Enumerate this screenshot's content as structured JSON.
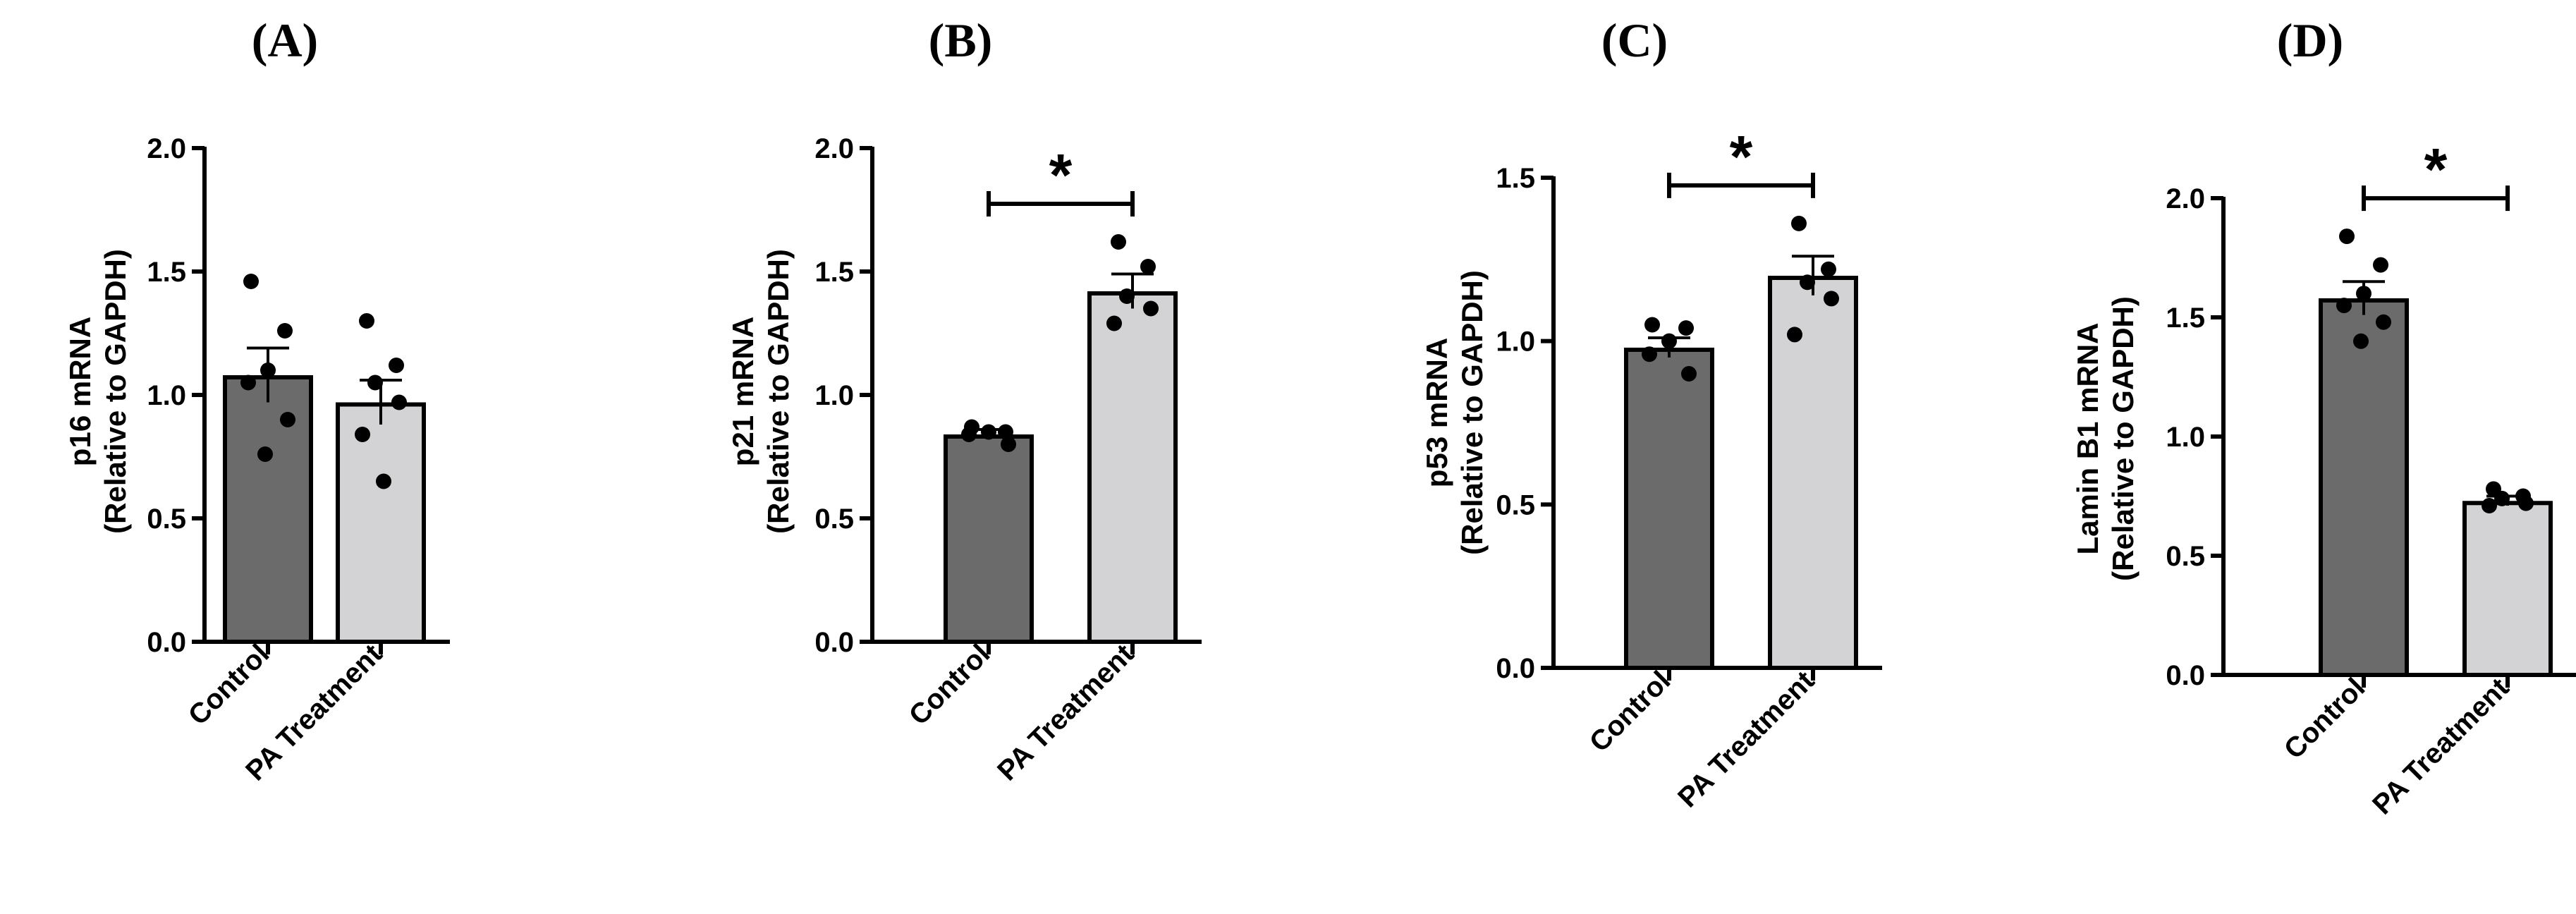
{
  "figure": {
    "background": "#ffffff",
    "axis_color": "#000000"
  },
  "chart_data": [
    {
      "panel": "(A)",
      "type": "bar",
      "ylabel_line1": "p16 mRNA",
      "ylabel_line2": "(Relative to GAPDH)",
      "categories": [
        "Control",
        "PA Treatment"
      ],
      "values": [
        1.08,
        0.97
      ],
      "sem": [
        0.11,
        0.09
      ],
      "points": [
        [
          1.46,
          1.26,
          1.1,
          1.05,
          0.9,
          0.76
        ],
        [
          1.3,
          1.12,
          1.05,
          0.97,
          0.84,
          0.65
        ]
      ],
      "colors": [
        "#6b6b6b",
        "#d3d3d6"
      ],
      "ylim": [
        0,
        2.0
      ],
      "yticks": [
        "0.0",
        "0.5",
        "1.0",
        "1.5",
        "2.0"
      ],
      "significance": ""
    },
    {
      "panel": "(B)",
      "type": "bar",
      "ylabel_line1": "p21 mRNA",
      "ylabel_line2": "(Relative to GAPDH)",
      "categories": [
        "Control",
        "PA Treatment"
      ],
      "values": [
        0.84,
        1.42
      ],
      "sem": [
        0.02,
        0.07
      ],
      "points": [
        [
          0.87,
          0.85,
          0.85,
          0.84,
          0.8
        ],
        [
          1.62,
          1.52,
          1.4,
          1.35,
          1.29
        ]
      ],
      "colors": [
        "#6b6b6b",
        "#d3d3d6"
      ],
      "ylim": [
        0,
        2.0
      ],
      "yticks": [
        "0.0",
        "0.5",
        "1.0",
        "1.5",
        "2.0"
      ],
      "significance": "*"
    },
    {
      "panel": "(C)",
      "type": "bar",
      "ylabel_line1": "p53 mRNA",
      "ylabel_line2": "(Relative to GAPDH)",
      "categories": [
        "Control",
        "PA Treatment"
      ],
      "values": [
        0.98,
        1.2
      ],
      "sem": [
        0.03,
        0.06
      ],
      "points": [
        [
          1.05,
          1.04,
          1.0,
          0.96,
          0.9
        ],
        [
          1.36,
          1.22,
          1.18,
          1.13,
          1.02
        ]
      ],
      "colors": [
        "#6b6b6b",
        "#d3d3d6"
      ],
      "ylim": [
        0,
        1.5
      ],
      "yticks": [
        "0.0",
        "0.5",
        "1.0",
        "1.5"
      ],
      "significance": "*"
    },
    {
      "panel": "(D)",
      "type": "bar",
      "ylabel_line1": "Lamin B1 mRNA",
      "ylabel_line2": "(Relative to GAPDH)",
      "categories": [
        "Control",
        "PA Treatment"
      ],
      "values": [
        1.58,
        0.73
      ],
      "sem": [
        0.07,
        0.02
      ],
      "points": [
        [
          1.84,
          1.72,
          1.6,
          1.55,
          1.48,
          1.4
        ],
        [
          0.78,
          0.75,
          0.74,
          0.72,
          0.71
        ]
      ],
      "colors": [
        "#6b6b6b",
        "#d3d3d6"
      ],
      "ylim": [
        0,
        2.0
      ],
      "yticks": [
        "0.0",
        "0.5",
        "1.0",
        "1.5",
        "2.0"
      ],
      "significance": "*"
    }
  ]
}
